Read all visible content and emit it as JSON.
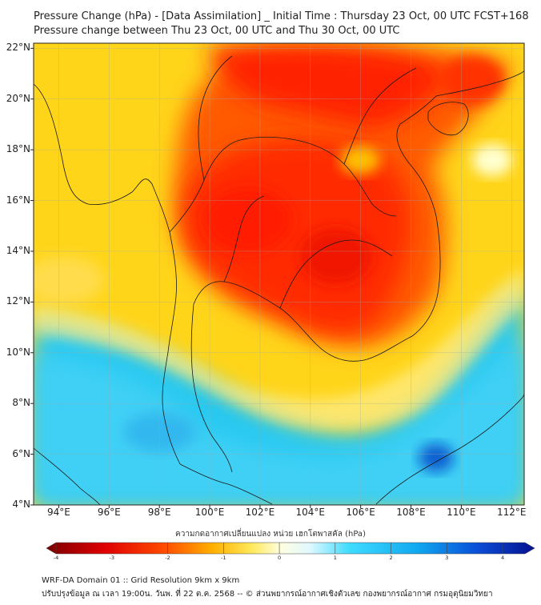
{
  "title": {
    "line1": "Pressure Change (hPa) - [Data Assimilation] _ Initial Time : Thursday 23 Oct, 00 UTC FCST+168",
    "line2": "Pressure change between Thu 23 Oct, 00 UTC and Thu 30 Oct, 00 UTC"
  },
  "map": {
    "lat_labels": [
      "22°N",
      "20°N",
      "18°N",
      "16°N",
      "14°N",
      "12°N",
      "10°N",
      "8°N",
      "6°N",
      "4°N"
    ],
    "lon_labels": [
      "94°E",
      "96°E",
      "98°E",
      "100°E",
      "102°E",
      "104°E",
      "106°E",
      "108°E",
      "110°E",
      "112°E"
    ],
    "lon_range": [
      93,
      112.5
    ],
    "lat_range": [
      4,
      22.2
    ],
    "field": "pressure change (hPa)",
    "highlights": {
      "max_fall_region": "central Thailand / Cambodia / Laos (approx -3 hPa)",
      "max_rise_region": "south China Sea near 109°E 5.8°N (approx +2.5 hPa)"
    }
  },
  "colorbar": {
    "label": "ความกดอากาศเปลี่ยนแปลง หน่วย เฮกโตพาสคัล (hPa)",
    "ticks": [
      "-4",
      "-3",
      "-2",
      "-1",
      "0",
      "1",
      "2",
      "3",
      "4"
    ],
    "range": [
      -4,
      4.4
    ]
  },
  "footer": {
    "line1": "WRF-DA Domain 01 :: Grid Resolution 9km x 9km",
    "line2": "ปรับปรุงข้อมูล ณ เวลา 19:00น. วันพ. ที่ 22 ต.ค. 2568 -- © ส่วนพยากรณ์อากาศเชิงตัวเลข กองพยากรณ์อากาศ กรมอุตุนิยมวิทยา"
  },
  "colors": {
    "strong_fall": "#8b0000",
    "fall": "#ff2a00",
    "weak_fall": "#ffc800",
    "neutral": "#ffff88",
    "rise": "#22ccf0",
    "strong_rise": "#0a3aa8"
  }
}
